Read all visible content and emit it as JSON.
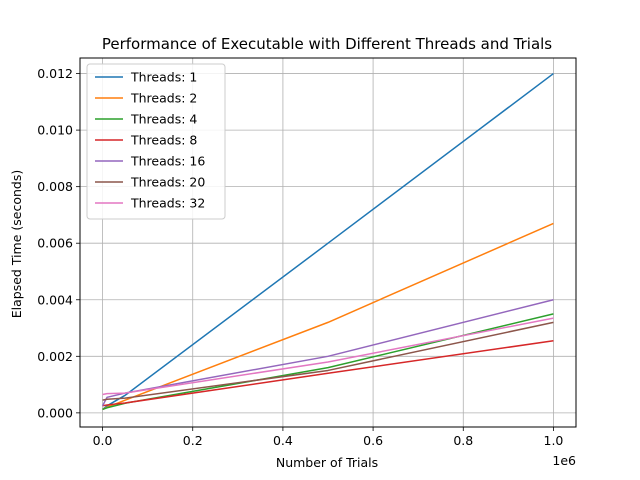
{
  "chart_data": {
    "type": "line",
    "title": "Performance of Executable with Different Threads and Trials",
    "xlabel": "Number of Trials",
    "ylabel": "Elapsed Time (seconds)",
    "x_offset_label": "1e6",
    "xlim": [
      -0.05,
      1.05
    ],
    "ylim": [
      -0.0005,
      0.01255
    ],
    "xticks": [
      0.0,
      0.2,
      0.4,
      0.6,
      0.8,
      1.0
    ],
    "xtick_labels": [
      "0.0",
      "0.2",
      "0.4",
      "0.6",
      "0.8",
      "1.0"
    ],
    "yticks": [
      0.0,
      0.002,
      0.004,
      0.006,
      0.008,
      0.01,
      0.012
    ],
    "ytick_labels": [
      "0.000",
      "0.002",
      "0.004",
      "0.006",
      "0.008",
      "0.010",
      "0.012"
    ],
    "grid": true,
    "legend_position": "upper-left",
    "x": [
      0.0,
      0.01,
      0.05,
      0.5,
      1.0
    ],
    "series": [
      {
        "name": "Threads: 1",
        "color": "#1f77b4",
        "values": [
          0.00012,
          0.00025,
          0.00062,
          0.006,
          0.012
        ]
      },
      {
        "name": "Threads: 2",
        "color": "#ff7f0e",
        "values": [
          0.00012,
          0.0002,
          0.00045,
          0.0032,
          0.0067
        ]
      },
      {
        "name": "Threads: 4",
        "color": "#2ca02c",
        "values": [
          0.00012,
          0.00018,
          0.00034,
          0.0016,
          0.0035
        ]
      },
      {
        "name": "Threads: 8",
        "color": "#d62728",
        "values": [
          0.00025,
          0.00028,
          0.00035,
          0.0014,
          0.00255
        ]
      },
      {
        "name": "Threads: 16",
        "color": "#9467bd",
        "values": [
          0.00025,
          0.00055,
          0.0007,
          0.002,
          0.004
        ]
      },
      {
        "name": "Threads: 20",
        "color": "#8c564b",
        "values": [
          0.00045,
          0.00048,
          0.00052,
          0.0015,
          0.0032
        ]
      },
      {
        "name": "Threads: 32",
        "color": "#e377c2",
        "values": [
          0.00065,
          0.00068,
          0.0007,
          0.0018,
          0.00335
        ]
      }
    ]
  }
}
